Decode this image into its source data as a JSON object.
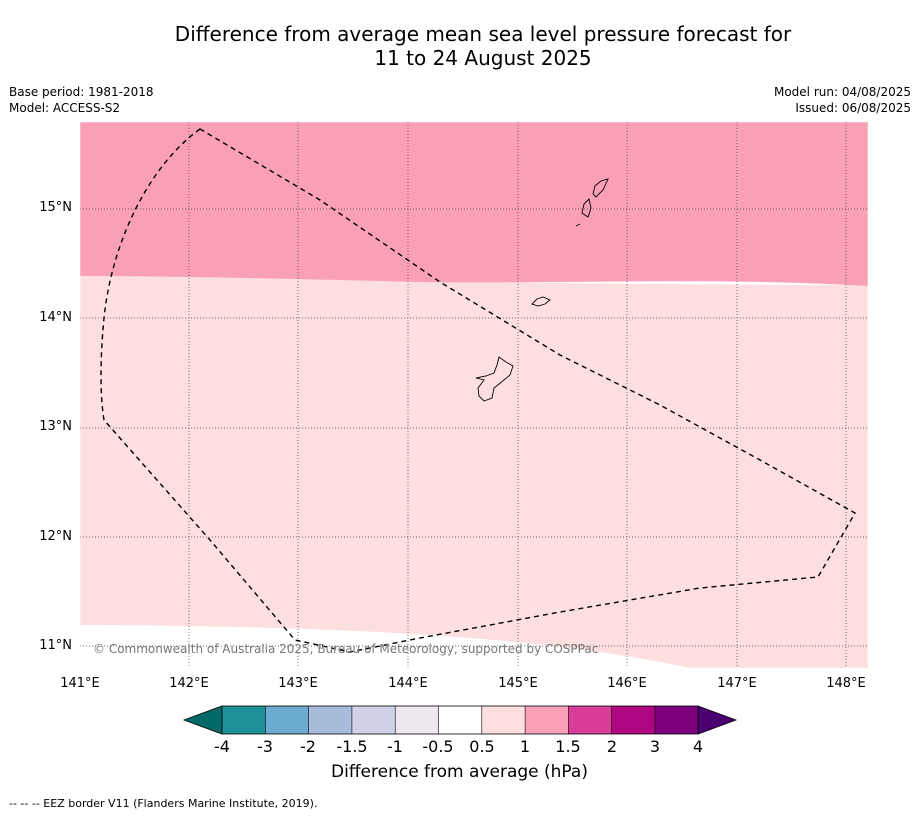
{
  "title_line1": "Difference from average mean sea level pressure forecast for",
  "title_line2": "11 to 24 August 2025",
  "base_period": "Base period: 1981-2018",
  "model": "Model: ACCESS-S2",
  "model_run": "Model run: 04/08/2025",
  "issued": "Issued: 06/08/2025",
  "latitude_labels": [
    "15°N",
    "14°N",
    "13°N",
    "12°N",
    "11°N"
  ],
  "longitude_labels": [
    "141°E",
    "142°E",
    "143°E",
    "144°E",
    "145°E",
    "146°E",
    "147°E",
    "148°E"
  ],
  "copyright": "© Commonwealth of Australia 2025, Bureau of Meteorology, supported by COSPPac",
  "colorbar": {
    "ticks": [
      "-4",
      "-3",
      "-2",
      "-1.5",
      "-1",
      "-0.5",
      "0.5",
      "1",
      "1.5",
      "2",
      "3",
      "4"
    ],
    "colors": [
      "#036b67",
      "#1b9197",
      "#6baad1",
      "#a7bbdb",
      "#cfd1e7",
      "#eee7ef",
      "#ffffff",
      "#fddfdf",
      "#f9a0b6",
      "#da3c9a",
      "#ae0580",
      "#7b017c",
      "#4c0070"
    ],
    "title": "Difference from average (hPa)"
  },
  "regions": [
    {
      "name": "pink-band",
      "color": "#f9a0b6",
      "range": "1 to 1.5"
    },
    {
      "name": "light-pink-band",
      "color": "#fddfdf",
      "range": "0.5 to 1"
    }
  ],
  "eez_note": "--  --  -- EEZ border V11 (Flanders Marine Institute, 2019)."
}
